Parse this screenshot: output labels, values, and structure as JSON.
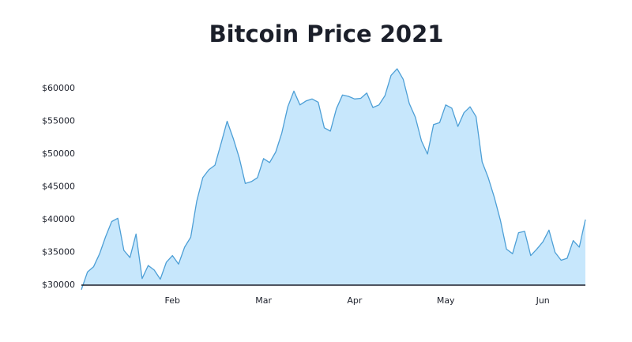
{
  "chart_data": {
    "type": "area",
    "title": "Bitcoin Price 2021",
    "categories": [
      null,
      null,
      null,
      null,
      null,
      null,
      null,
      null,
      null,
      null,
      null,
      null,
      null,
      null,
      null,
      "Feb",
      null,
      null,
      null,
      null,
      null,
      null,
      null,
      null,
      null,
      null,
      null,
      null,
      null,
      null,
      "Mar",
      null,
      null,
      null,
      null,
      null,
      null,
      null,
      null,
      null,
      null,
      null,
      null,
      null,
      null,
      "Apr",
      null,
      null,
      null,
      null,
      null,
      null,
      null,
      null,
      null,
      null,
      null,
      null,
      null,
      null,
      "May",
      null,
      null,
      null,
      null,
      null,
      null,
      null,
      null,
      null,
      null,
      null,
      null,
      null,
      null,
      null,
      "Jun",
      null,
      null,
      null,
      null,
      null,
      null,
      null
    ],
    "values": [
      29300,
      32000,
      32800,
      34800,
      37400,
      39700,
      40200,
      35300,
      34200,
      37800,
      31000,
      33000,
      32300,
      30900,
      33500,
      34500,
      33200,
      35800,
      37300,
      42800,
      46400,
      47600,
      48300,
      51600,
      55000,
      52400,
      49400,
      45500,
      45800,
      46400,
      49300,
      48700,
      50300,
      53200,
      57200,
      59600,
      57500,
      58100,
      58400,
      57900,
      54000,
      53500,
      56900,
      59000,
      58800,
      58400,
      58500,
      59300,
      57100,
      57500,
      58900,
      62000,
      63000,
      61400,
      57700,
      55600,
      52000,
      50000,
      54500,
      54800,
      57500,
      57000,
      54200,
      56300,
      57200,
      55700,
      48800,
      46400,
      43400,
      39900,
      35500,
      34800,
      38000,
      38200,
      34500,
      35500,
      36600,
      38400,
      35000,
      33800,
      34100,
      36800,
      35800,
      40000
    ],
    "color": "#4d9fd6",
    "fill_color": "#c7e7fc",
    "ylim": [
      30000,
      64000
    ],
    "yticks": [
      {
        "value": 30000,
        "label": "$30000"
      },
      {
        "value": 35000,
        "label": "$35000"
      },
      {
        "value": 40000,
        "label": "$40000"
      },
      {
        "value": 45000,
        "label": "$45000"
      },
      {
        "value": 50000,
        "label": "$50000"
      },
      {
        "value": 55000,
        "label": "$55000"
      },
      {
        "value": 60000,
        "label": "$60000"
      }
    ]
  }
}
